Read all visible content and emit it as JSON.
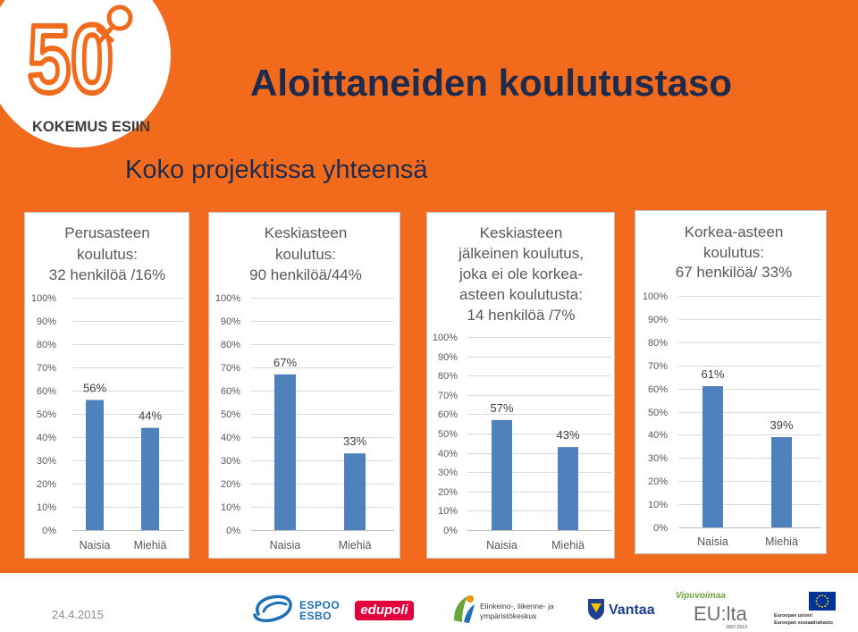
{
  "slide": {
    "title": "Aloittaneiden koulutustaso",
    "subtitle": "Koko projektissa yhteensä"
  },
  "logo": {
    "mark": "50+",
    "name": "KOKEMUS ESIIN"
  },
  "colors": {
    "background": "#F26B1D",
    "title": "#1F2B4C",
    "bar": "#4F81BD",
    "logo_orange": "#F26B1D",
    "espoo_blue": "#1C6FB8",
    "edupoli_red": "#E2003C",
    "vantaa_blue": "#1E3F8F",
    "vipuvoimaa_green": "#6BA539",
    "eu_blue": "#003399",
    "eu_yellow": "#FFCC00"
  },
  "chart_data": [
    {
      "type": "bar",
      "title_lines": [
        "Perusasteen",
        "koulutus:",
        "32 henkilöä /16%"
      ],
      "categories": [
        "Naisia",
        "Miehiä"
      ],
      "values": [
        56,
        44
      ],
      "data_labels": [
        "56%",
        "44%"
      ],
      "yticks": [
        "0%",
        "10%",
        "20%",
        "30%",
        "40%",
        "50%",
        "60%",
        "70%",
        "80%",
        "90%",
        "100%"
      ],
      "ylim": [
        0,
        100
      ],
      "grid": true
    },
    {
      "type": "bar",
      "title_lines": [
        "Keskiasteen",
        "koulutus:",
        "90 henkilöä/44%"
      ],
      "categories": [
        "Naisia",
        "Miehiä"
      ],
      "values": [
        67,
        33
      ],
      "data_labels": [
        "67%",
        "33%"
      ],
      "yticks": [
        "0%",
        "10%",
        "20%",
        "30%",
        "40%",
        "50%",
        "60%",
        "70%",
        "80%",
        "90%",
        "100%"
      ],
      "ylim": [
        0,
        100
      ],
      "grid": true
    },
    {
      "type": "bar",
      "title_lines": [
        "Keskiasteen",
        "jälkeinen koulutus,",
        "joka ei ole korkea-",
        "asteen koulutusta:",
        "14 henkilöä /7%"
      ],
      "categories": [
        "Naisia",
        "Miehiä"
      ],
      "values": [
        57,
        43
      ],
      "data_labels": [
        "57%",
        "43%"
      ],
      "yticks": [
        "0%",
        "10%",
        "20%",
        "30%",
        "40%",
        "50%",
        "60%",
        "70%",
        "80%",
        "90%",
        "100%"
      ],
      "ylim": [
        0,
        100
      ],
      "grid": true
    },
    {
      "type": "bar",
      "title_lines": [
        "Korkea-asteen",
        "koulutus:",
        "67 henkilöä/ 33%"
      ],
      "categories": [
        "Naisia",
        "Miehiä"
      ],
      "values": [
        61,
        39
      ],
      "data_labels": [
        "61%",
        "39%"
      ],
      "yticks": [
        "0%",
        "10%",
        "20%",
        "30%",
        "40%",
        "50%",
        "60%",
        "70%",
        "80%",
        "90%",
        "100%"
      ],
      "ylim": [
        0,
        100
      ],
      "grid": true
    }
  ],
  "footer": {
    "date": "24.4.2015",
    "espoo": [
      "ESPOO",
      "ESBO"
    ],
    "edupoli": "edupoli",
    "ely": [
      "Elinkeino-, liikenne- ja",
      "ympäristökeskus"
    ],
    "vantaa": "Vantaa",
    "vipuvoimaa": {
      "top": "Vipuvoimaa",
      "main": "EU:lta",
      "period": "2007-2013"
    },
    "eu": [
      "Euroopan unioni",
      "Euroopan sosiaalirahasto"
    ],
    "icons": {
      "espoo": "espoo-logo-icon",
      "ely": "ely-logo-icon",
      "vantaa": "vantaa-crest-icon",
      "eu": "eu-flag-icon"
    }
  }
}
